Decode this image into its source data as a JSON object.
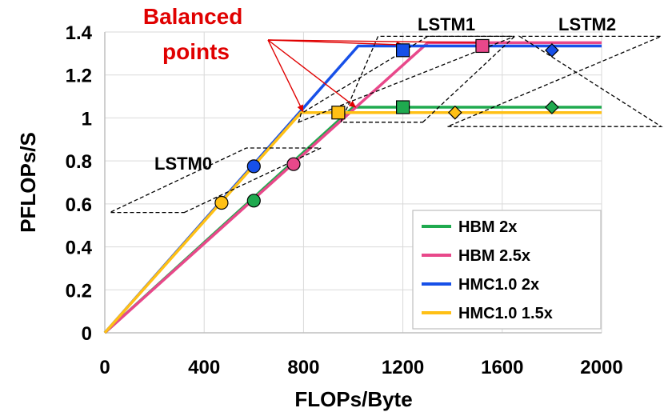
{
  "chart_data": {
    "type": "line",
    "xlabel": "FLOPs/Byte",
    "ylabel": "PFLOPs/S",
    "xlim": [
      0,
      2000
    ],
    "ylim": [
      0,
      1.4
    ],
    "x_ticks": [
      "0",
      "400",
      "800",
      "1200",
      "1600",
      "2000"
    ],
    "y_ticks": [
      "0",
      "0.2",
      "0.4",
      "0.6",
      "0.8",
      "1",
      "1.2",
      "1.4"
    ],
    "grid": true,
    "legend_position": "bottom-right",
    "series": [
      {
        "name": "HBM 2x",
        "color": "#1faa4f",
        "points": [
          [
            0,
            0
          ],
          [
            1000,
            1.05
          ],
          [
            2000,
            1.05
          ]
        ],
        "markers": [
          {
            "x": 600,
            "y": 0.615,
            "shape": "circle"
          },
          {
            "x": 1200,
            "y": 1.05,
            "shape": "square"
          },
          {
            "x": 1800,
            "y": 1.05,
            "shape": "diamond"
          }
        ]
      },
      {
        "name": "HBM 2.5x",
        "color": "#e8488a",
        "points": [
          [
            0,
            0
          ],
          [
            1300,
            1.35
          ],
          [
            2000,
            1.35
          ]
        ],
        "markers": [
          {
            "x": 760,
            "y": 0.785,
            "shape": "circle"
          },
          {
            "x": 1520,
            "y": 1.335,
            "shape": "square"
          }
        ]
      },
      {
        "name": "HMC1.0 2x",
        "color": "#1750e8",
        "points": [
          [
            0,
            0
          ],
          [
            1020,
            1.335
          ],
          [
            2000,
            1.335
          ]
        ],
        "markers": [
          {
            "x": 600,
            "y": 0.775,
            "shape": "circle"
          },
          {
            "x": 1200,
            "y": 1.315,
            "shape": "square"
          },
          {
            "x": 1800,
            "y": 1.315,
            "shape": "diamond"
          }
        ]
      },
      {
        "name": "HMC1.0 1.5x",
        "color": "#ffc015",
        "points": [
          [
            0,
            0
          ],
          [
            790,
            1.025
          ],
          [
            2000,
            1.025
          ]
        ],
        "markers": [
          {
            "x": 470,
            "y": 0.605,
            "shape": "circle"
          },
          {
            "x": 940,
            "y": 1.025,
            "shape": "square"
          },
          {
            "x": 1410,
            "y": 1.025,
            "shape": "diamond"
          }
        ]
      }
    ],
    "annotations": {
      "balanced": "Balanced\npoints",
      "lstm0": "LSTM0",
      "lstm1": "LSTM1",
      "lstm2": "LSTM2"
    }
  }
}
